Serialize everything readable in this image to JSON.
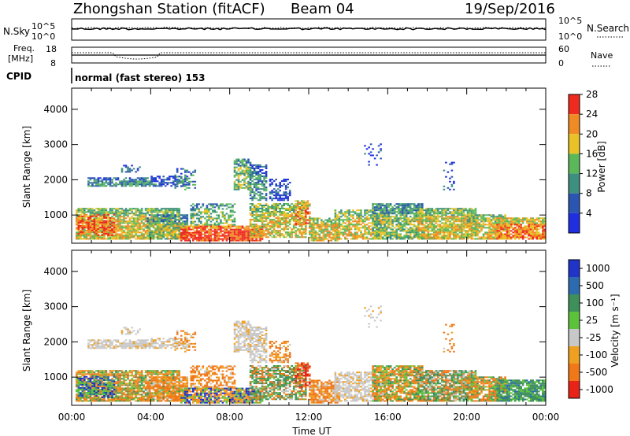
{
  "header": {
    "station": "Zhongshan Station (fitACF)",
    "beam": "Beam 04",
    "date": "19/Sep/2016"
  },
  "strip": {
    "nsky_label": "N.Sky",
    "nsky_ticks": [
      "10^5",
      "10^0"
    ],
    "nsearch_label": "N.Search",
    "nsearch_ticks": [
      "10^5",
      "10^0"
    ],
    "freq_label_1": "Freq.",
    "freq_label_2": "[MHz]",
    "freq_ticks": [
      "18",
      "8"
    ],
    "nave_label": "Nave",
    "nave_ticks": [
      "60",
      "0"
    ],
    "cpid_label": "CPID",
    "mode_text": "normal (fast stereo) 153"
  },
  "chart_data": [
    {
      "type": "heatmap",
      "name": "power-panel",
      "ylabel": "Slant Range [km]",
      "xlabel": "",
      "y_ticks": [
        "1000",
        "2000",
        "3000",
        "4000"
      ],
      "ylim": [
        200,
        4600
      ],
      "x_ticks": [
        "00:00",
        "04:00",
        "08:00",
        "12:00",
        "16:00",
        "20:00",
        "00:00"
      ],
      "xlim_hours": [
        0,
        24
      ],
      "colorbar": {
        "label": "Power [dB]",
        "ticks": [
          "4",
          "8",
          "12",
          "16",
          "20",
          "24",
          "28"
        ],
        "colors": [
          "#1f2fe0",
          "#2a55b0",
          "#3d8f7f",
          "#5bb85a",
          "#e9c227",
          "#f08a24",
          "#ef2a1e"
        ]
      }
    },
    {
      "type": "heatmap",
      "name": "velocity-panel",
      "ylabel": "Slant Range [km]",
      "xlabel": "Time UT",
      "y_ticks": [
        "1000",
        "2000",
        "3000",
        "4000"
      ],
      "ylim": [
        200,
        4600
      ],
      "x_ticks": [
        "00:00",
        "04:00",
        "08:00",
        "12:00",
        "16:00",
        "20:00",
        "00:00"
      ],
      "xlim_hours": [
        0,
        24
      ],
      "colorbar": {
        "label": "Velocity [m s⁻¹]",
        "ticks": [
          "1000",
          "500",
          "100",
          "25",
          "-25",
          "-100",
          "-500",
          "-1000"
        ],
        "colors": [
          "#2034c8",
          "#2c6bb0",
          "#3e8f5a",
          "#5cc23c",
          "#c8c8c8",
          "#f0a020",
          "#f07818",
          "#e82418"
        ]
      }
    }
  ]
}
